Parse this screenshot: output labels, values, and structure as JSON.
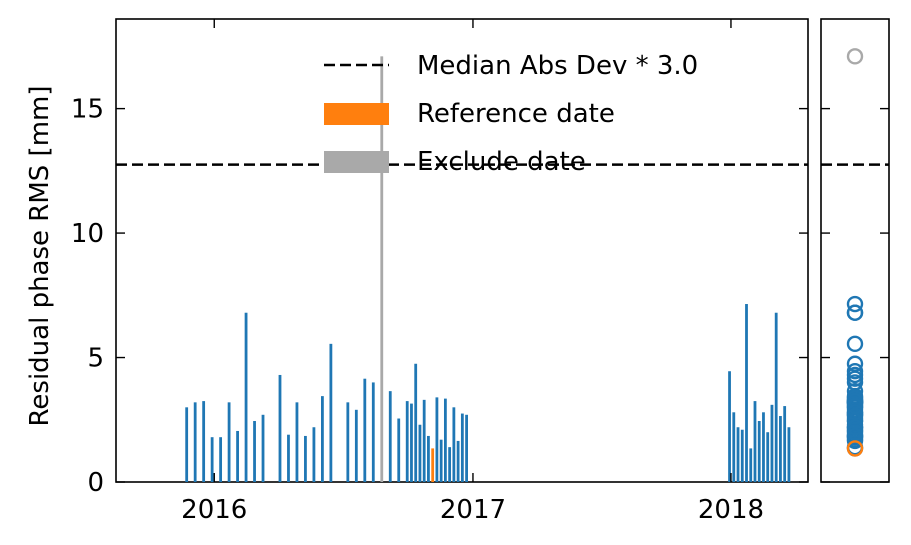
{
  "chart_data": {
    "type": "bar",
    "ylabel": "Residual phase RMS [mm]",
    "xlim": [
      "2015-08-15",
      "2018-04-20"
    ],
    "ylim": [
      0,
      18.6
    ],
    "x_ticks": [
      "2016",
      "2017",
      "2018"
    ],
    "y_ticks": [
      "0",
      "5",
      "10",
      "15"
    ],
    "threshold": 12.75,
    "legend": [
      {
        "label": "Median Abs Dev * 3.0",
        "kind": "dashed-line",
        "color": "#000000"
      },
      {
        "label": "Reference date",
        "kind": "patch",
        "color": "#ff7f0e"
      },
      {
        "label": "Exclude date",
        "kind": "patch",
        "color": "#a9a9a9"
      }
    ],
    "colors": {
      "normal": "#1f77b4",
      "reference": "#ff7f0e",
      "excluded": "#a9a9a9"
    },
    "bars": [
      {
        "date": "2015-11-23",
        "value": 3.0
      },
      {
        "date": "2015-12-05",
        "value": 3.2
      },
      {
        "date": "2015-12-17",
        "value": 3.25
      },
      {
        "date": "2015-12-29",
        "value": 1.8
      },
      {
        "date": "2016-01-10",
        "value": 1.8
      },
      {
        "date": "2016-01-22",
        "value": 3.2
      },
      {
        "date": "2016-02-03",
        "value": 2.05
      },
      {
        "date": "2016-02-15",
        "value": 6.8
      },
      {
        "date": "2016-02-27",
        "value": 2.45
      },
      {
        "date": "2016-03-10",
        "value": 2.7
      },
      {
        "date": "2016-04-03",
        "value": 4.3
      },
      {
        "date": "2016-04-15",
        "value": 1.9
      },
      {
        "date": "2016-04-27",
        "value": 3.2
      },
      {
        "date": "2016-05-09",
        "value": 1.85
      },
      {
        "date": "2016-05-21",
        "value": 2.2
      },
      {
        "date": "2016-06-02",
        "value": 3.45
      },
      {
        "date": "2016-06-14",
        "value": 5.55
      },
      {
        "date": "2016-07-08",
        "value": 3.2
      },
      {
        "date": "2016-07-20",
        "value": 2.9
      },
      {
        "date": "2016-08-01",
        "value": 4.15
      },
      {
        "date": "2016-08-13",
        "value": 4.0
      },
      {
        "date": "2016-08-25",
        "value": 17.1,
        "status": "excluded"
      },
      {
        "date": "2016-09-06",
        "value": 3.65
      },
      {
        "date": "2016-09-18",
        "value": 2.55
      },
      {
        "date": "2016-09-30",
        "value": 3.25
      },
      {
        "date": "2016-10-06",
        "value": 3.15
      },
      {
        "date": "2016-10-12",
        "value": 4.75
      },
      {
        "date": "2016-10-18",
        "value": 2.3
      },
      {
        "date": "2016-10-24",
        "value": 3.3
      },
      {
        "date": "2016-10-30",
        "value": 1.85
      },
      {
        "date": "2016-11-05",
        "value": 1.35,
        "status": "reference"
      },
      {
        "date": "2016-11-11",
        "value": 3.4
      },
      {
        "date": "2016-11-17",
        "value": 1.7
      },
      {
        "date": "2016-11-23",
        "value": 3.35
      },
      {
        "date": "2016-11-29",
        "value": 1.4
      },
      {
        "date": "2016-12-05",
        "value": 3.0
      },
      {
        "date": "2016-12-11",
        "value": 1.65
      },
      {
        "date": "2016-12-17",
        "value": 2.75
      },
      {
        "date": "2016-12-23",
        "value": 2.7
      },
      {
        "date": "2017-12-30",
        "value": 4.45
      },
      {
        "date": "2018-01-05",
        "value": 2.8
      },
      {
        "date": "2018-01-11",
        "value": 2.2
      },
      {
        "date": "2018-01-17",
        "value": 2.1
      },
      {
        "date": "2018-01-23",
        "value": 7.15
      },
      {
        "date": "2018-01-29",
        "value": 1.35
      },
      {
        "date": "2018-02-04",
        "value": 3.25
      },
      {
        "date": "2018-02-10",
        "value": 2.45
      },
      {
        "date": "2018-02-16",
        "value": 2.8
      },
      {
        "date": "2018-02-22",
        "value": 2.0
      },
      {
        "date": "2018-02-28",
        "value": 3.1
      },
      {
        "date": "2018-03-06",
        "value": 6.8
      },
      {
        "date": "2018-03-12",
        "value": 2.65
      },
      {
        "date": "2018-03-18",
        "value": 3.05
      },
      {
        "date": "2018-03-24",
        "value": 2.2
      }
    ]
  }
}
